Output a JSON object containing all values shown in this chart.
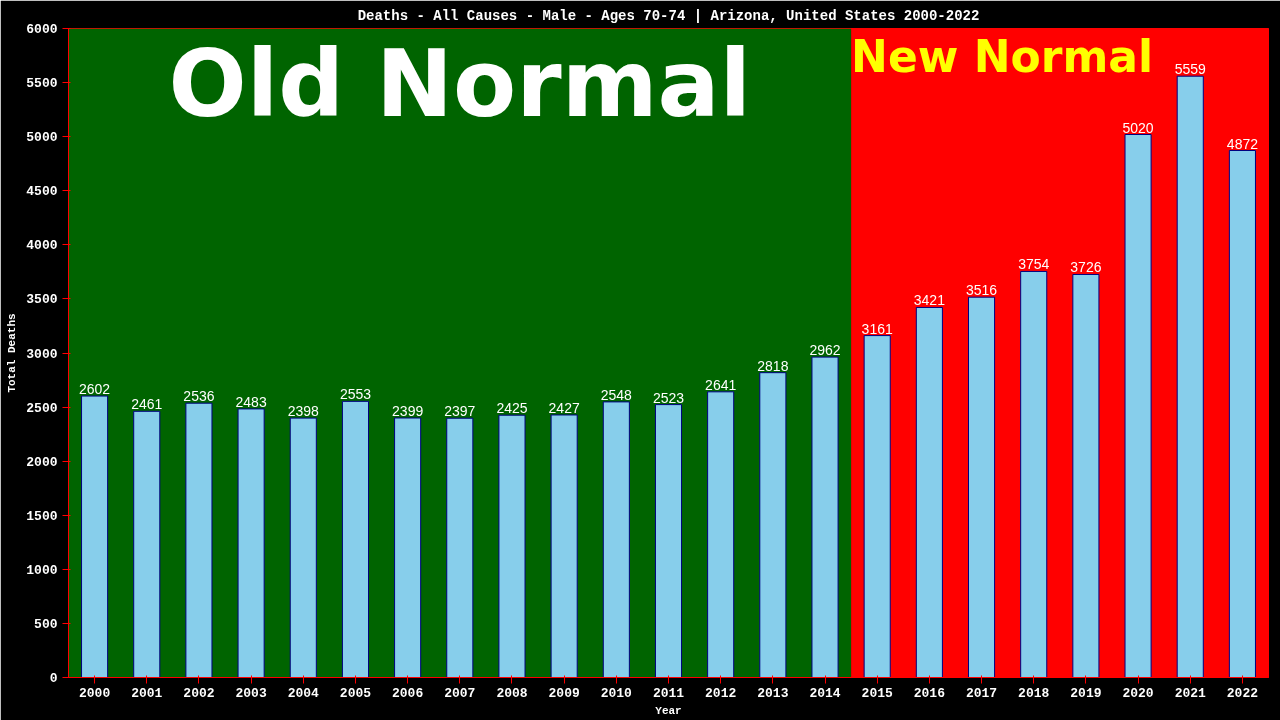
{
  "chart_data": {
    "type": "bar",
    "title": "Deaths - All Causes - Male - Ages 70-74 | Arizona, United States 2000-2022",
    "xlabel": "Year",
    "ylabel": "Total Deaths",
    "categories": [
      "2000",
      "2001",
      "2002",
      "2003",
      "2004",
      "2005",
      "2006",
      "2007",
      "2008",
      "2009",
      "2010",
      "2011",
      "2012",
      "2013",
      "2014",
      "2015",
      "2016",
      "2017",
      "2018",
      "2019",
      "2020",
      "2021",
      "2022"
    ],
    "values": [
      2602,
      2461,
      2536,
      2483,
      2398,
      2553,
      2399,
      2397,
      2425,
      2427,
      2548,
      2523,
      2641,
      2818,
      2962,
      3161,
      3421,
      3516,
      3754,
      3726,
      5020,
      5559,
      4872
    ],
    "color": "#87ceeb",
    "data_labels": true,
    "ylim": [
      0,
      6000
    ],
    "yticks": [
      0,
      500,
      1000,
      1500,
      2000,
      2500,
      3000,
      3500,
      4000,
      4500,
      5000,
      5500,
      6000
    ],
    "grid": false,
    "bands": [
      {
        "axis": "x",
        "from": "2000",
        "to": "2014",
        "label": "Old Normal",
        "color": "#006400"
      },
      {
        "axis": "x",
        "from": "2015",
        "to": "2022",
        "label": "New Normal",
        "color": "#ff0000"
      }
    ]
  }
}
